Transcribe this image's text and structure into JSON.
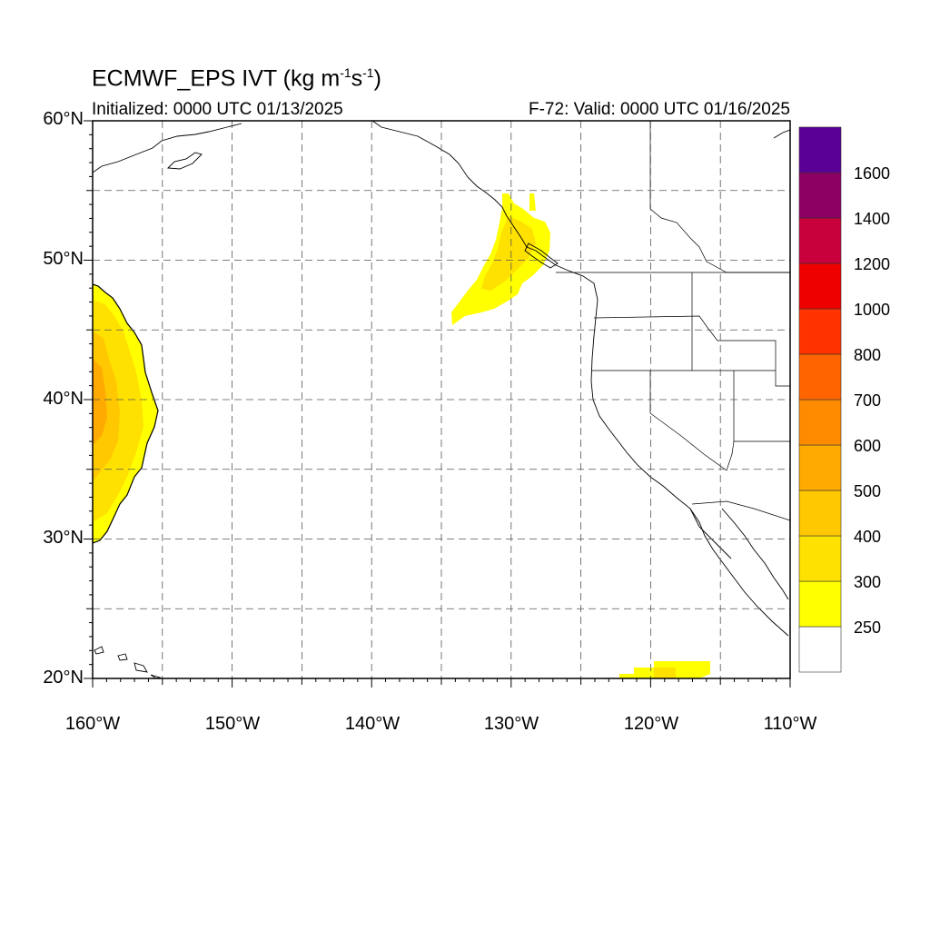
{
  "header": {
    "title_main": "ECMWF_EPS IVT (kg m",
    "title_exp1": "-1",
    "title_mid": "s",
    "title_exp2": "-1",
    "title_end": ")",
    "initialized": "Initialized: 0000 UTC 01/13/2025",
    "valid": "F-72: Valid: 0000 UTC 01/16/2025"
  },
  "axes": {
    "lat_labels": [
      "60°N",
      "50°N",
      "40°N",
      "30°N",
      "20°N"
    ],
    "lon_labels": [
      "160°W",
      "150°W",
      "140°W",
      "130°W",
      "120°W",
      "110°W"
    ],
    "lat_range": [
      20,
      60
    ],
    "lon_range": [
      -160,
      -110
    ],
    "grid": "dashed every 5°"
  },
  "colorbar": {
    "labels": [
      "1600",
      "1400",
      "1200",
      "1000",
      "800",
      "700",
      "600",
      "500",
      "400",
      "300",
      "250"
    ],
    "colors": [
      "#ffffff",
      "#ffff00",
      "#ffe100",
      "#ffc800",
      "#ffaa00",
      "#ff8c00",
      "#ff6400",
      "#ff3200",
      "#ee0000",
      "#c8003c",
      "#8c0064",
      "#5a0096"
    ]
  },
  "features": {
    "ivt_plume_subtropical": "IVT 250-500 kg m-1 s-1 near 160°W, 30-48°N",
    "ivt_plume_pacific_nw": "IVT 250-300 kg m-1 s-1 near 128-134°W, 45-55°N",
    "ivt_patch_south": "IVT 250-300 kg m-1 s-1 near 116-122°W, 20-21°N"
  }
}
